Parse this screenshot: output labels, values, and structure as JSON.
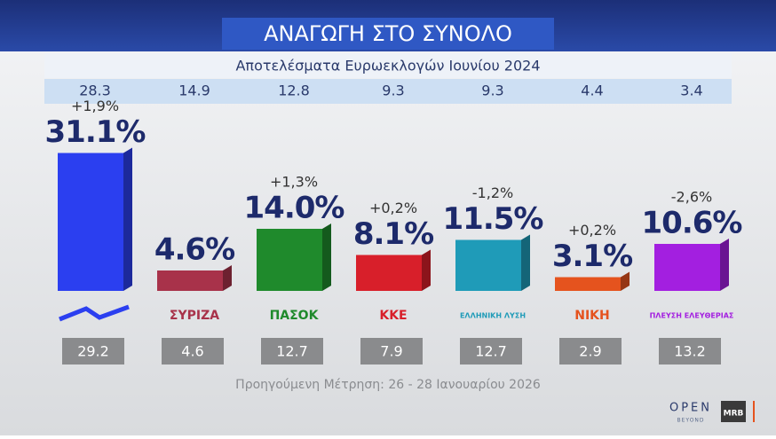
{
  "chart_data": {
    "type": "bar",
    "title": "ΑΝΑΓΩΓΗ ΣΤΟ ΣΥΝΟΛΟ",
    "categories": [
      null,
      "ΣΥΡΙΖΑ",
      "ΠΑΣΟΚ",
      "ΚΚΕ",
      "ΕΛΛΗΝΙΚΗ ΛΥΣΗ",
      "ΝΙΚΗ",
      "ΠΛΕΥΣΗ ΕΛΕΥΘΕΡΙΑΣ"
    ],
    "values": [
      31.1,
      4.6,
      14.0,
      8.1,
      11.5,
      3.1,
      10.6
    ],
    "value_labels": [
      "31.1%",
      "4.6%",
      "14.0%",
      "8.1%",
      "11.5%",
      "3.1%",
      "10.6%"
    ],
    "colors": [
      "#2b3ff0",
      "#a8324a",
      "#1f8a2c",
      "#d81f2a",
      "#1f9bb8",
      "#e5531e",
      "#a31fe0"
    ],
    "change": {
      "values": [
        1.9,
        1.3,
        0.2,
        -1.2,
        0.2,
        -2.6
      ],
      "categories_index": [
        0,
        2,
        3,
        4,
        5,
        6
      ],
      "value_labels": [
        "+1,9%",
        "+1,3%",
        "+0,2%",
        "-1,2%",
        "+0,2%",
        "-2,6%"
      ]
    },
    "euro_2024": {
      "label": "Αποτελέσματα Ευρωεκλογών Ιουνίου 2024",
      "values": [
        28.3,
        14.9,
        12.8,
        9.3,
        9.3,
        4.4,
        3.4
      ]
    },
    "previous": {
      "label": "Προηγούμενη Μέτρηση: 26 - 28 Ιανουαρίου 2026",
      "values": [
        29.2,
        4.6,
        12.7,
        7.9,
        12.7,
        2.9,
        13.2
      ]
    }
  },
  "branding": {
    "channel": "OPEN",
    "tagline": "BEYOND",
    "pollster": "MRB"
  }
}
